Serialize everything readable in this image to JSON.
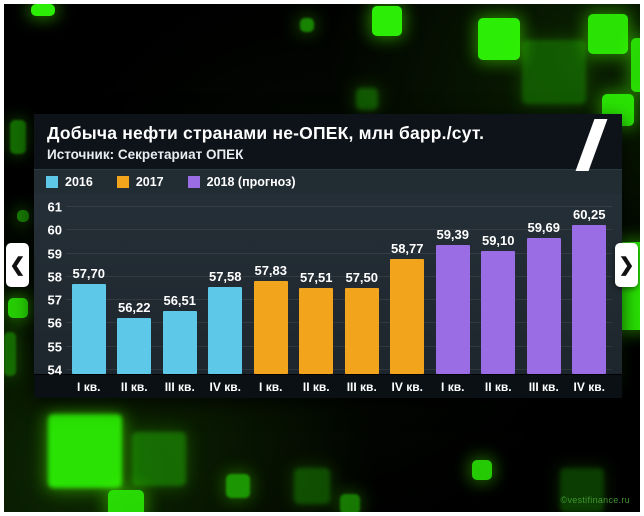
{
  "nav": {
    "prev_icon": "❮",
    "next_icon": "❯"
  },
  "watermark": "©vestifinance.ru",
  "accent_color": "#2ced05",
  "chart_data": {
    "type": "bar",
    "title": "Добыча нефти странами не-ОПЕК, млн барр./сут.",
    "source": "Источник: Секретариат ОПЕК",
    "categories": [
      "I кв.",
      "II кв.",
      "III кв.",
      "IV кв.",
      "I кв.",
      "II кв.",
      "III кв.",
      "IV кв.",
      "I кв.",
      "II кв.",
      "III кв.",
      "IV кв."
    ],
    "series": [
      {
        "name": "2016",
        "color": "#5ec8e8",
        "values": [
          57.7,
          56.22,
          56.51,
          57.58
        ]
      },
      {
        "name": "2017",
        "color": "#f2a41c",
        "values": [
          57.83,
          57.51,
          57.5,
          58.77
        ]
      },
      {
        "name": "2018 (прогноз)",
        "color": "#9a6de4",
        "values": [
          59.39,
          59.1,
          59.69,
          60.25
        ]
      }
    ],
    "value_labels": [
      "57,70",
      "56,22",
      "56,51",
      "57,58",
      "57,83",
      "57,51",
      "57,50",
      "58,77",
      "59,39",
      "59,10",
      "59,69",
      "60,25"
    ],
    "yticks": [
      54,
      55,
      56,
      57,
      58,
      59,
      60,
      61
    ],
    "ylim": [
      53.8,
      61.2
    ],
    "grid": true,
    "legend_position": "top"
  }
}
